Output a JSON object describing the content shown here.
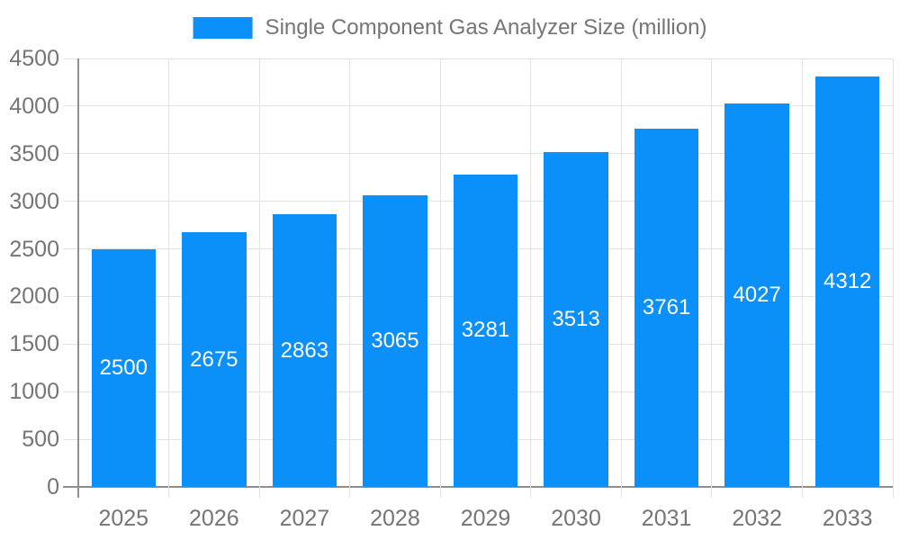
{
  "chart_data": {
    "type": "bar",
    "title": "Single Component Gas Analyzer Size (million)",
    "categories": [
      "2025",
      "2026",
      "2027",
      "2028",
      "2029",
      "2030",
      "2031",
      "2032",
      "2033"
    ],
    "values": [
      2500,
      2675,
      2863,
      3065,
      3281,
      3513,
      3761,
      4027,
      4312
    ],
    "xlabel": "",
    "ylabel": "",
    "ylim": [
      0,
      4500
    ],
    "ytick_step": 500,
    "yticks": [
      0,
      500,
      1000,
      1500,
      2000,
      2500,
      3000,
      3500,
      4000,
      4500
    ],
    "grid": true,
    "legend_position": "top-center",
    "value_label_position": "inside-center",
    "colors": {
      "bar": "#0b8ff9",
      "value_label": "#ffffff",
      "tick_label": "#757575",
      "legend_text": "#757575",
      "grid_line": "#e3e3e3",
      "axis_line": "#8f8f8f",
      "background": "#ffffff"
    }
  }
}
